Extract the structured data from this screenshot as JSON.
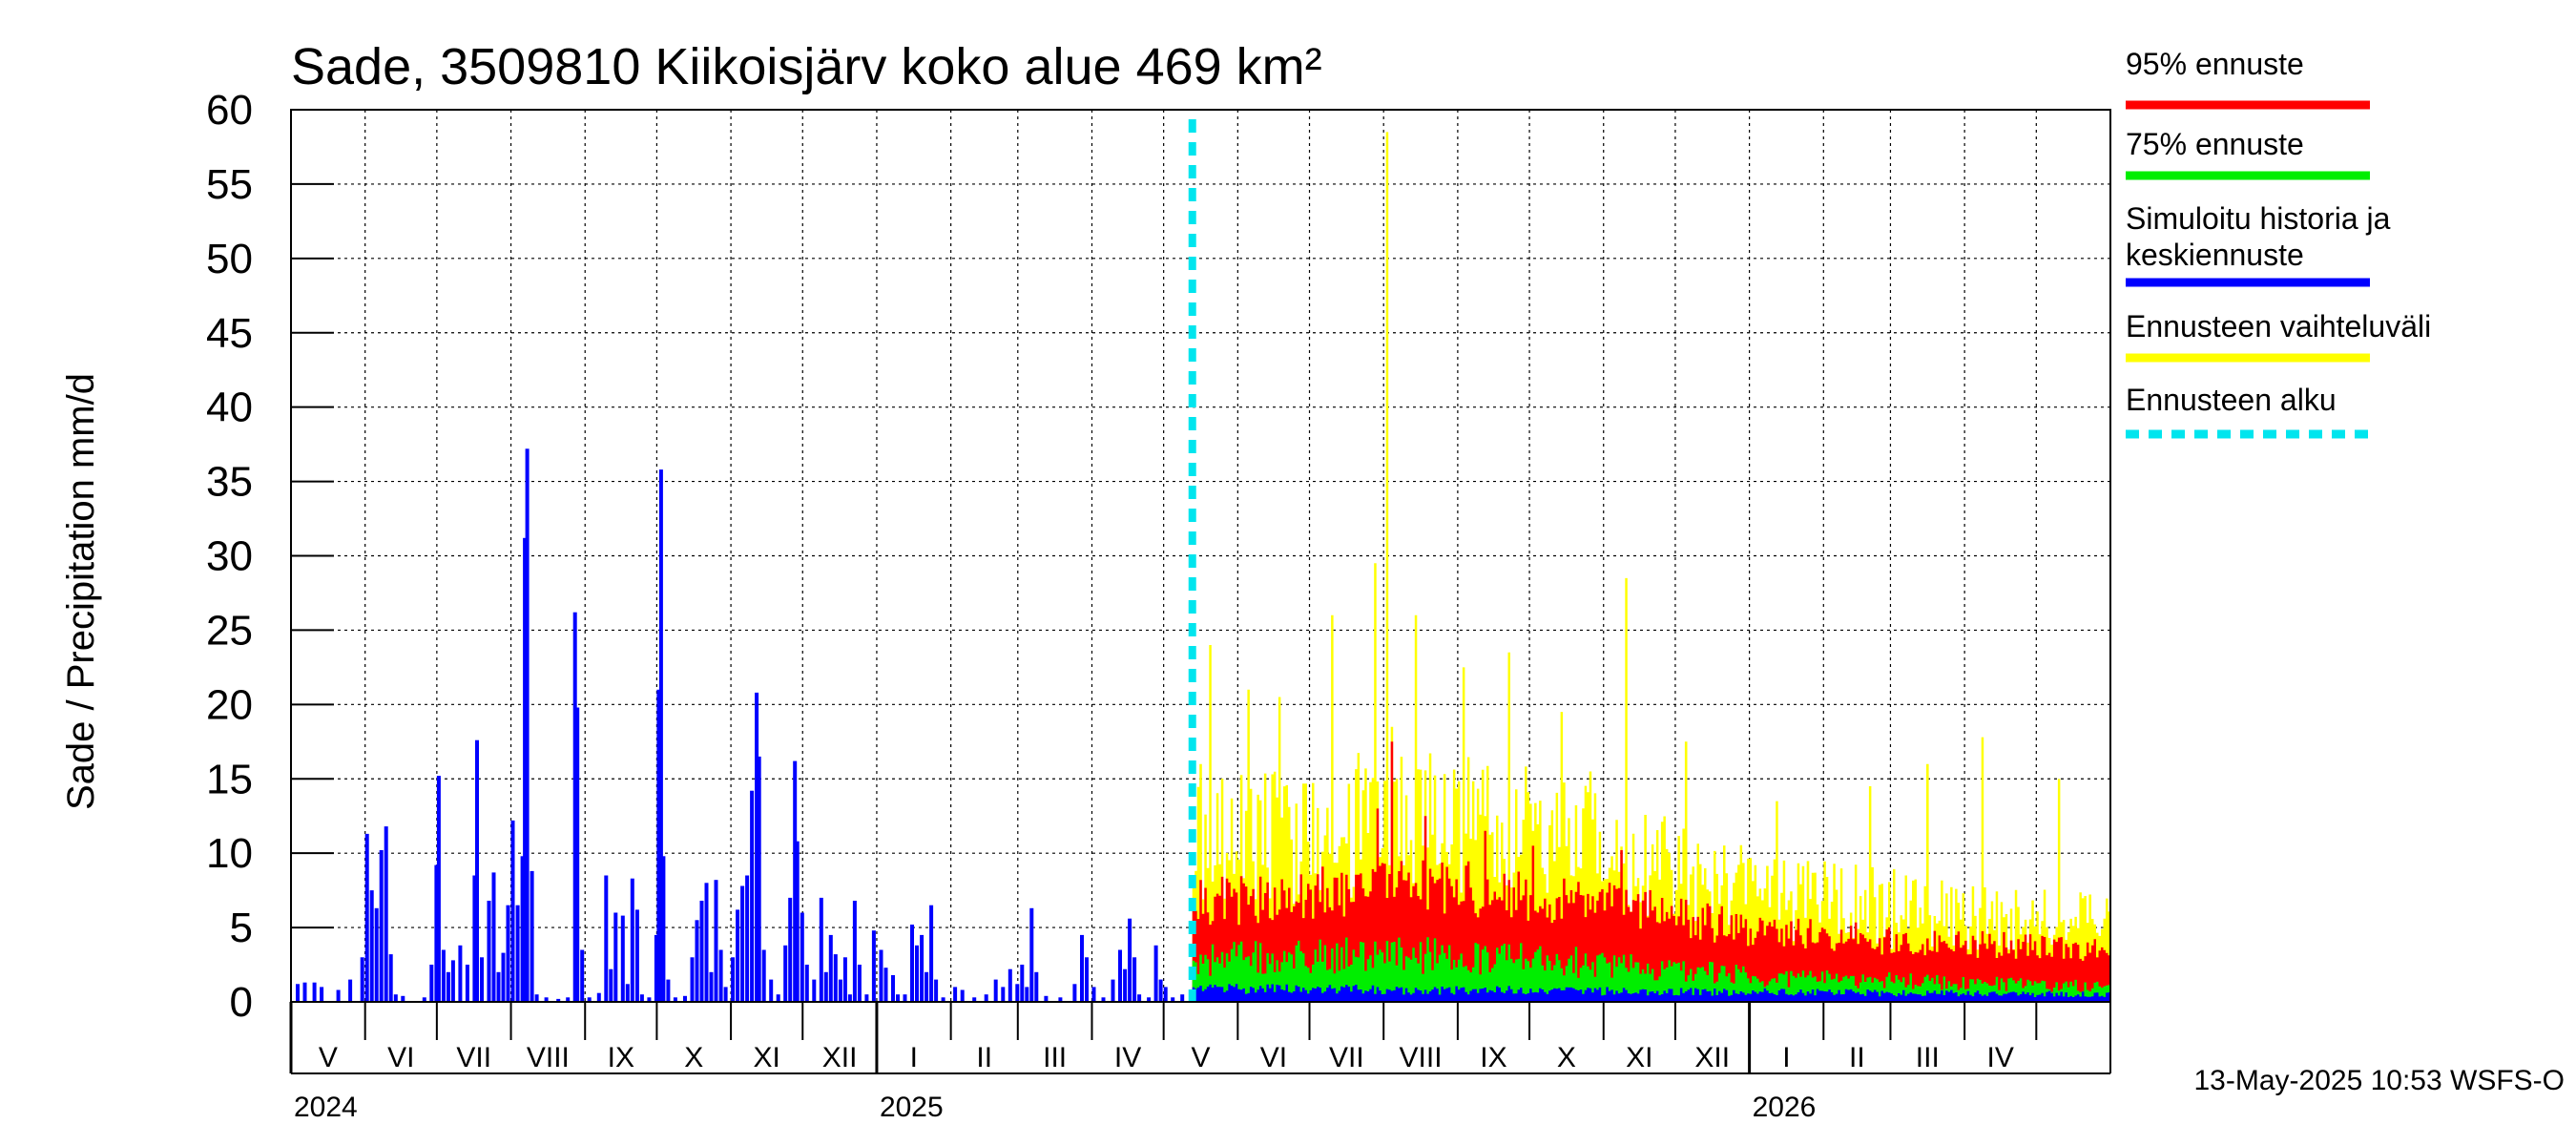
{
  "chart_data": {
    "type": "bar",
    "title": "Sade, 3509810 Kiikoisjärv koko alue 469 km²",
    "ylabel": "Sade / Precipitation   mm/d",
    "ylim": [
      0,
      60
    ],
    "yticks": [
      0,
      5,
      10,
      15,
      20,
      25,
      30,
      35,
      40,
      45,
      50,
      55,
      60
    ],
    "x_start": "2024-05-01",
    "x_end": "2026-05-31",
    "forecast_start": "2025-05-13",
    "months": [
      {
        "label": "V",
        "start": "2024-05-01"
      },
      {
        "label": "VI",
        "start": "2024-06-01"
      },
      {
        "label": "VII",
        "start": "2024-07-01"
      },
      {
        "label": "VIII",
        "start": "2024-08-01"
      },
      {
        "label": "IX",
        "start": "2024-09-01"
      },
      {
        "label": "X",
        "start": "2024-10-01"
      },
      {
        "label": "XI",
        "start": "2024-11-01"
      },
      {
        "label": "XII",
        "start": "2024-12-01"
      },
      {
        "label": "I",
        "start": "2025-01-01"
      },
      {
        "label": "II",
        "start": "2025-02-01"
      },
      {
        "label": "III",
        "start": "2025-03-01"
      },
      {
        "label": "IV",
        "start": "2025-04-01"
      },
      {
        "label": "V",
        "start": "2025-05-01"
      },
      {
        "label": "VI",
        "start": "2025-06-01"
      },
      {
        "label": "VII",
        "start": "2025-07-01"
      },
      {
        "label": "VIII",
        "start": "2025-08-01"
      },
      {
        "label": "IX",
        "start": "2025-09-01"
      },
      {
        "label": "X",
        "start": "2025-10-01"
      },
      {
        "label": "XI",
        "start": "2025-11-01"
      },
      {
        "label": "XII",
        "start": "2025-12-01"
      },
      {
        "label": "I",
        "start": "2026-01-01"
      },
      {
        "label": "II",
        "start": "2026-02-01"
      },
      {
        "label": "III",
        "start": "2026-03-01"
      },
      {
        "label": "IV",
        "start": "2026-04-01"
      },
      {
        "label": "",
        "start": "2026-05-01"
      }
    ],
    "years": [
      {
        "label": "2024",
        "date": "2024-05-01"
      },
      {
        "label": "2025",
        "date": "2025-01-01"
      },
      {
        "label": "2026",
        "date": "2026-01-01"
      }
    ],
    "history_events": [
      {
        "date": "2024-05-03",
        "value": 1.2
      },
      {
        "date": "2024-05-06",
        "value": 1.3
      },
      {
        "date": "2024-05-10",
        "value": 1.3
      },
      {
        "date": "2024-05-13",
        "value": 1.0
      },
      {
        "date": "2024-05-20",
        "value": 0.8
      },
      {
        "date": "2024-05-25",
        "value": 1.5
      },
      {
        "date": "2024-05-30",
        "value": 3.0
      },
      {
        "date": "2024-06-01",
        "value": 11.3
      },
      {
        "date": "2024-06-03",
        "value": 7.5
      },
      {
        "date": "2024-06-05",
        "value": 6.3
      },
      {
        "date": "2024-06-07",
        "value": 10.2
      },
      {
        "date": "2024-06-09",
        "value": 11.8
      },
      {
        "date": "2024-06-11",
        "value": 3.2
      },
      {
        "date": "2024-06-13",
        "value": 0.5
      },
      {
        "date": "2024-06-16",
        "value": 0.4
      },
      {
        "date": "2024-06-25",
        "value": 0.3
      },
      {
        "date": "2024-06-28",
        "value": 2.5
      },
      {
        "date": "2024-06-30",
        "value": 9.2
      },
      {
        "date": "2024-07-01",
        "value": 15.2
      },
      {
        "date": "2024-07-03",
        "value": 3.5
      },
      {
        "date": "2024-07-05",
        "value": 2.0
      },
      {
        "date": "2024-07-07",
        "value": 2.8
      },
      {
        "date": "2024-07-10",
        "value": 3.8
      },
      {
        "date": "2024-07-13",
        "value": 2.5
      },
      {
        "date": "2024-07-16",
        "value": 8.5
      },
      {
        "date": "2024-07-17",
        "value": 17.6
      },
      {
        "date": "2024-07-19",
        "value": 3.0
      },
      {
        "date": "2024-07-22",
        "value": 6.8
      },
      {
        "date": "2024-07-24",
        "value": 8.7
      },
      {
        "date": "2024-07-26",
        "value": 2.0
      },
      {
        "date": "2024-07-28",
        "value": 3.3
      },
      {
        "date": "2024-07-30",
        "value": 6.5
      },
      {
        "date": "2024-08-01",
        "value": 12.2
      },
      {
        "date": "2024-08-03",
        "value": 6.5
      },
      {
        "date": "2024-08-05",
        "value": 9.8
      },
      {
        "date": "2024-08-06",
        "value": 31.2
      },
      {
        "date": "2024-08-07",
        "value": 37.2
      },
      {
        "date": "2024-08-09",
        "value": 8.8
      },
      {
        "date": "2024-08-11",
        "value": 0.5
      },
      {
        "date": "2024-08-15",
        "value": 0.3
      },
      {
        "date": "2024-08-20",
        "value": 0.2
      },
      {
        "date": "2024-08-24",
        "value": 0.3
      },
      {
        "date": "2024-08-27",
        "value": 26.2
      },
      {
        "date": "2024-08-28",
        "value": 19.8
      },
      {
        "date": "2024-08-30",
        "value": 3.5
      },
      {
        "date": "2024-09-02",
        "value": 0.3
      },
      {
        "date": "2024-09-06",
        "value": 0.6
      },
      {
        "date": "2024-09-09",
        "value": 8.5
      },
      {
        "date": "2024-09-11",
        "value": 2.2
      },
      {
        "date": "2024-09-13",
        "value": 6.0
      },
      {
        "date": "2024-09-16",
        "value": 5.8
      },
      {
        "date": "2024-09-18",
        "value": 1.2
      },
      {
        "date": "2024-09-20",
        "value": 8.3
      },
      {
        "date": "2024-09-22",
        "value": 6.2
      },
      {
        "date": "2024-09-24",
        "value": 0.5
      },
      {
        "date": "2024-09-27",
        "value": 0.3
      },
      {
        "date": "2024-09-30",
        "value": 4.5
      },
      {
        "date": "2024-10-01",
        "value": 21.0
      },
      {
        "date": "2024-10-02",
        "value": 35.8
      },
      {
        "date": "2024-10-03",
        "value": 9.8
      },
      {
        "date": "2024-10-05",
        "value": 1.5
      },
      {
        "date": "2024-10-08",
        "value": 0.3
      },
      {
        "date": "2024-10-12",
        "value": 0.4
      },
      {
        "date": "2024-10-15",
        "value": 3.0
      },
      {
        "date": "2024-10-17",
        "value": 5.5
      },
      {
        "date": "2024-10-19",
        "value": 6.8
      },
      {
        "date": "2024-10-21",
        "value": 8.0
      },
      {
        "date": "2024-10-23",
        "value": 2.0
      },
      {
        "date": "2024-10-25",
        "value": 8.2
      },
      {
        "date": "2024-10-27",
        "value": 3.5
      },
      {
        "date": "2024-10-29",
        "value": 1.0
      },
      {
        "date": "2024-11-01",
        "value": 3.0
      },
      {
        "date": "2024-11-03",
        "value": 6.2
      },
      {
        "date": "2024-11-05",
        "value": 7.8
      },
      {
        "date": "2024-11-07",
        "value": 8.5
      },
      {
        "date": "2024-11-09",
        "value": 14.2
      },
      {
        "date": "2024-11-11",
        "value": 20.8
      },
      {
        "date": "2024-11-12",
        "value": 16.5
      },
      {
        "date": "2024-11-14",
        "value": 3.5
      },
      {
        "date": "2024-11-17",
        "value": 1.5
      },
      {
        "date": "2024-11-20",
        "value": 0.5
      },
      {
        "date": "2024-11-23",
        "value": 3.8
      },
      {
        "date": "2024-11-25",
        "value": 7.0
      },
      {
        "date": "2024-11-27",
        "value": 16.2
      },
      {
        "date": "2024-11-28",
        "value": 10.8
      },
      {
        "date": "2024-11-30",
        "value": 6.0
      },
      {
        "date": "2024-12-02",
        "value": 2.5
      },
      {
        "date": "2024-12-05",
        "value": 1.5
      },
      {
        "date": "2024-12-08",
        "value": 7.0
      },
      {
        "date": "2024-12-10",
        "value": 2.0
      },
      {
        "date": "2024-12-12",
        "value": 4.5
      },
      {
        "date": "2024-12-14",
        "value": 3.2
      },
      {
        "date": "2024-12-16",
        "value": 1.5
      },
      {
        "date": "2024-12-18",
        "value": 3.0
      },
      {
        "date": "2024-12-20",
        "value": 0.5
      },
      {
        "date": "2024-12-22",
        "value": 6.8
      },
      {
        "date": "2024-12-24",
        "value": 2.5
      },
      {
        "date": "2024-12-27",
        "value": 0.5
      },
      {
        "date": "2024-12-30",
        "value": 4.8
      },
      {
        "date": "2025-01-02",
        "value": 3.5
      },
      {
        "date": "2025-01-04",
        "value": 2.3
      },
      {
        "date": "2025-01-07",
        "value": 1.8
      },
      {
        "date": "2025-01-09",
        "value": 0.5
      },
      {
        "date": "2025-01-12",
        "value": 0.5
      },
      {
        "date": "2025-01-15",
        "value": 5.2
      },
      {
        "date": "2025-01-17",
        "value": 3.8
      },
      {
        "date": "2025-01-19",
        "value": 4.5
      },
      {
        "date": "2025-01-21",
        "value": 2.0
      },
      {
        "date": "2025-01-23",
        "value": 6.5
      },
      {
        "date": "2025-01-25",
        "value": 1.5
      },
      {
        "date": "2025-01-28",
        "value": 0.3
      },
      {
        "date": "2025-02-02",
        "value": 1.0
      },
      {
        "date": "2025-02-05",
        "value": 0.8
      },
      {
        "date": "2025-02-10",
        "value": 0.3
      },
      {
        "date": "2025-02-15",
        "value": 0.5
      },
      {
        "date": "2025-02-19",
        "value": 1.5
      },
      {
        "date": "2025-02-22",
        "value": 1.0
      },
      {
        "date": "2025-02-25",
        "value": 2.2
      },
      {
        "date": "2025-02-28",
        "value": 1.2
      },
      {
        "date": "2025-03-02",
        "value": 2.5
      },
      {
        "date": "2025-03-04",
        "value": 1.0
      },
      {
        "date": "2025-03-06",
        "value": 6.3
      },
      {
        "date": "2025-03-08",
        "value": 2.0
      },
      {
        "date": "2025-03-12",
        "value": 0.4
      },
      {
        "date": "2025-03-18",
        "value": 0.3
      },
      {
        "date": "2025-03-24",
        "value": 1.2
      },
      {
        "date": "2025-03-27",
        "value": 4.5
      },
      {
        "date": "2025-03-29",
        "value": 3.0
      },
      {
        "date": "2025-04-01",
        "value": 1.0
      },
      {
        "date": "2025-04-05",
        "value": 0.3
      },
      {
        "date": "2025-04-09",
        "value": 1.5
      },
      {
        "date": "2025-04-12",
        "value": 3.5
      },
      {
        "date": "2025-04-14",
        "value": 2.2
      },
      {
        "date": "2025-04-16",
        "value": 5.6
      },
      {
        "date": "2025-04-18",
        "value": 3.0
      },
      {
        "date": "2025-04-20",
        "value": 0.5
      },
      {
        "date": "2025-04-24",
        "value": 0.3
      },
      {
        "date": "2025-04-27",
        "value": 3.8
      },
      {
        "date": "2025-04-29",
        "value": 1.5
      },
      {
        "date": "2025-05-01",
        "value": 1.0
      },
      {
        "date": "2025-05-04",
        "value": 0.3
      },
      {
        "date": "2025-05-08",
        "value": 0.5
      }
    ],
    "forecast_envelope": {
      "base_range": [
        10.0,
        5.0
      ],
      "base_p95": [
        6.5,
        3.5
      ],
      "base_p75": [
        2.8,
        1.0
      ],
      "base_mean": [
        0.9,
        0.5
      ],
      "spikes": [
        {
          "date": "2025-05-16",
          "value": 16.0
        },
        {
          "date": "2025-05-20",
          "value": 24.0
        },
        {
          "date": "2025-06-05",
          "value": 21.0
        },
        {
          "date": "2025-06-18",
          "value": 20.5
        },
        {
          "date": "2025-07-10",
          "value": 26.0
        },
        {
          "date": "2025-07-28",
          "value": 29.5
        },
        {
          "date": "2025-08-02",
          "value": 58.5
        },
        {
          "date": "2025-08-14",
          "value": 26.0
        },
        {
          "date": "2025-09-03",
          "value": 22.5
        },
        {
          "date": "2025-09-22",
          "value": 23.5
        },
        {
          "date": "2025-10-14",
          "value": 19.5
        },
        {
          "date": "2025-10-26",
          "value": 15.5
        },
        {
          "date": "2025-11-10",
          "value": 28.5
        },
        {
          "date": "2025-12-05",
          "value": 17.5
        },
        {
          "date": "2026-01-12",
          "value": 13.5
        },
        {
          "date": "2026-02-20",
          "value": 14.5
        },
        {
          "date": "2026-03-16",
          "value": 16.0
        },
        {
          "date": "2026-04-08",
          "value": 17.8
        },
        {
          "date": "2026-05-10",
          "value": 15.0
        }
      ],
      "red_peaks": [
        {
          "date": "2025-07-29",
          "value": 13.0
        },
        {
          "date": "2025-08-04",
          "value": 17.5
        },
        {
          "date": "2025-08-18",
          "value": 12.5
        },
        {
          "date": "2025-09-12",
          "value": 11.5
        },
        {
          "date": "2025-10-02",
          "value": 10.5
        },
        {
          "date": "2025-11-08",
          "value": 10.2
        }
      ]
    },
    "legend": [
      {
        "label": "95% ennuste",
        "color": "#ff0000",
        "style": "solid"
      },
      {
        "label": "75% ennuste",
        "color": "#00ee00",
        "style": "solid"
      },
      {
        "label": "Simuloitu historia ja",
        "label2": "keskiennuste",
        "color": "#0000ff",
        "style": "solid"
      },
      {
        "label": "Ennusteen vaihteluväli",
        "color": "#ffff00",
        "style": "solid"
      },
      {
        "label": "Ennusteen alku",
        "color": "#00e5ee",
        "style": "dashed"
      }
    ],
    "colors": {
      "history": "#0000ff",
      "range": "#ffff00",
      "p95": "#ff0000",
      "p75": "#00ee00",
      "mean": "#0000ff",
      "forecast_start": "#00e5ee",
      "grid": "#000000"
    },
    "legend_position": "right",
    "grid": true
  },
  "footer": {
    "timestamp": "13-May-2025 10:53 WSFS-O"
  }
}
